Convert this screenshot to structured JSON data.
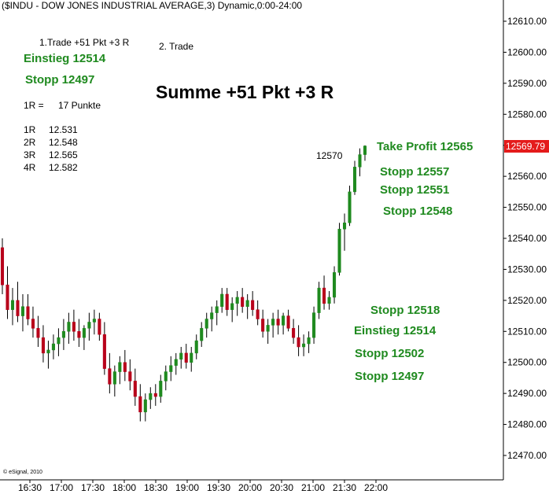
{
  "chart_data": {
    "type": "candlestick",
    "title": "($INDU - DOW JONES INDUSTRIAL AVERAGE,3) Dynamic,0:00-24:00",
    "ylim": [
      12465,
      12620
    ],
    "y_ticks": [
      "12610.00",
      "12600.00",
      "12590.00",
      "12580.00",
      "12570.00",
      "12560.00",
      "12550.00",
      "12540.00",
      "12530.00",
      "12520.00",
      "12510.00",
      "12500.00",
      "12490.00",
      "12480.00",
      "12470.00"
    ],
    "y_tick_values": [
      12610,
      12600,
      12590,
      12580,
      12570,
      12560,
      12550,
      12540,
      12530,
      12520,
      12510,
      12500,
      12490,
      12480,
      12470
    ],
    "x_ticks": [
      "16:30",
      "17:00",
      "17:30",
      "18:00",
      "18:30",
      "19:00",
      "19:30",
      "20:00",
      "20:30",
      "21:00",
      "21:30",
      "22:00"
    ],
    "last_price": "12569.79",
    "last_value": 12569.79,
    "up_color": "#1f8a1f",
    "down_color": "#b8001a",
    "candles": [
      [
        12537,
        12540,
        12522,
        12525
      ],
      [
        12525,
        12531,
        12514,
        12517
      ],
      [
        12517,
        12524,
        12512,
        12520
      ],
      [
        12520,
        12526,
        12513,
        12515
      ],
      [
        12515,
        12522,
        12510,
        12518
      ],
      [
        12518,
        12522,
        12512,
        12514
      ],
      [
        12514,
        12518,
        12508,
        12511
      ],
      [
        12511,
        12515,
        12505,
        12508
      ],
      [
        12508,
        12512,
        12500,
        12503
      ],
      [
        12503,
        12507,
        12498,
        12504
      ],
      [
        12504,
        12509,
        12501,
        12506
      ],
      [
        12506,
        12511,
        12502,
        12508
      ],
      [
        12508,
        12514,
        12504,
        12510
      ],
      [
        12510,
        12516,
        12506,
        12513
      ],
      [
        12513,
        12517,
        12507,
        12510
      ],
      [
        12510,
        12514,
        12505,
        12508
      ],
      [
        12508,
        12512,
        12504,
        12511
      ],
      [
        12511,
        12516,
        12507,
        12513
      ],
      [
        12513,
        12517,
        12509,
        12514
      ],
      [
        12514,
        12516,
        12507,
        12509
      ],
      [
        12509,
        12513,
        12496,
        12498
      ],
      [
        12498,
        12503,
        12490,
        12493
      ],
      [
        12493,
        12499,
        12489,
        12497
      ],
      [
        12497,
        12502,
        12493,
        12500
      ],
      [
        12500,
        12504,
        12494,
        12497
      ],
      [
        12497,
        12501,
        12491,
        12494
      ],
      [
        12494,
        12498,
        12486,
        12489
      ],
      [
        12489,
        12493,
        12481,
        12484
      ],
      [
        12484,
        12490,
        12481,
        12488
      ],
      [
        12488,
        12492,
        12485,
        12490
      ],
      [
        12490,
        12493,
        12486,
        12489
      ],
      [
        12489,
        12496,
        12487,
        12494
      ],
      [
        12494,
        12499,
        12491,
        12497
      ],
      [
        12497,
        12502,
        12494,
        12499
      ],
      [
        12499,
        12503,
        12496,
        12501
      ],
      [
        12501,
        12505,
        12498,
        12503
      ],
      [
        12503,
        12506,
        12498,
        12500
      ],
      [
        12500,
        12505,
        12497,
        12503
      ],
      [
        12503,
        12509,
        12501,
        12507
      ],
      [
        12507,
        12513,
        12505,
        12511
      ],
      [
        12511,
        12516,
        12508,
        12514
      ],
      [
        12514,
        12518,
        12510,
        12516
      ],
      [
        12516,
        12520,
        12512,
        12518
      ],
      [
        12518,
        12524,
        12516,
        12522
      ],
      [
        12522,
        12524,
        12515,
        12517
      ],
      [
        12517,
        12521,
        12513,
        12519
      ],
      [
        12519,
        12523,
        12515,
        12521
      ],
      [
        12521,
        12524,
        12516,
        12518
      ],
      [
        12518,
        12522,
        12514,
        12520
      ],
      [
        12520,
        12523,
        12515,
        12517
      ],
      [
        12517,
        12520,
        12512,
        12514
      ],
      [
        12514,
        12517,
        12508,
        12510
      ],
      [
        12510,
        12514,
        12506,
        12512
      ],
      [
        12512,
        12516,
        12508,
        12514
      ],
      [
        12514,
        12517,
        12509,
        12512
      ],
      [
        12512,
        12516,
        12509,
        12515
      ],
      [
        12515,
        12517,
        12510,
        12511
      ],
      [
        12511,
        12514,
        12506,
        12508
      ],
      [
        12508,
        12512,
        12502,
        12505
      ],
      [
        12505,
        12509,
        12502,
        12506
      ],
      [
        12506,
        12510,
        12503,
        12508
      ],
      [
        12508,
        12518,
        12506,
        12516
      ],
      [
        12516,
        12526,
        12514,
        12524
      ],
      [
        12524,
        12528,
        12517,
        12519
      ],
      [
        12519,
        12523,
        12517,
        12521
      ],
      [
        12521,
        12531,
        12519,
        12529
      ],
      [
        12529,
        12545,
        12528,
        12543
      ],
      [
        12543,
        12548,
        12536,
        12545
      ],
      [
        12545,
        12557,
        12544,
        12555
      ],
      [
        12555,
        12565,
        12554,
        12563
      ],
      [
        12563,
        12569,
        12560,
        12567
      ],
      [
        12567,
        12570,
        12565,
        12569.79
      ]
    ]
  },
  "header_title": "($INDU - DOW JONES INDUSTRIAL AVERAGE,3) Dynamic,0:00-24:00",
  "copyright": "© eSignal, 2010",
  "annotations": {
    "trade1": "1.Trade +51 Pkt +3 R",
    "trade2": "2. Trade",
    "einstieg_top": "Einstieg 12514",
    "stopp_top": "Stopp 12497",
    "summe": "Summe +51 Pkt +3 R",
    "r_label": "1R =",
    "r_value": "17 Punkte",
    "r_levels": [
      {
        "k": "1R",
        "v": "12.531"
      },
      {
        "k": "2R",
        "v": "12.548"
      },
      {
        "k": "3R",
        "v": "12.565"
      },
      {
        "k": "4R",
        "v": "12.582"
      }
    ],
    "label_12570": "12570",
    "take_profit": "Take Profit 12565",
    "stopp_12557": "Stopp 12557",
    "stopp_12551": "Stopp 12551",
    "stopp_12548": "Stopp 12548",
    "stopp_12518": "Stopp 12518",
    "einstieg_12514": "Einstieg 12514",
    "stopp_12502": "Stopp 12502",
    "stopp_12497": "Stopp 12497"
  }
}
